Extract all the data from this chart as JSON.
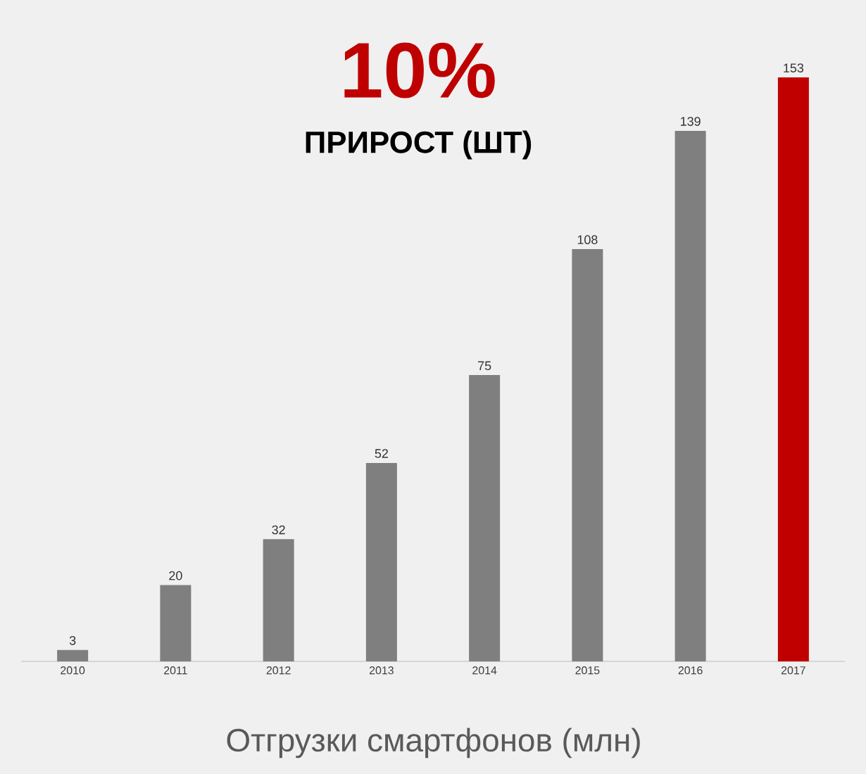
{
  "chart_data": {
    "type": "bar",
    "title": "10%",
    "subtitle": "ПРИРОСТ (ШТ)",
    "xlabel": "Отгрузки смартфонов (млн)",
    "categories": [
      "2010",
      "2011",
      "2012",
      "2013",
      "2014",
      "2015",
      "2016",
      "2017"
    ],
    "values": [
      3,
      20,
      32,
      52,
      75,
      108,
      139,
      153
    ],
    "colors": [
      "#7f7f7f",
      "#7f7f7f",
      "#7f7f7f",
      "#7f7f7f",
      "#7f7f7f",
      "#7f7f7f",
      "#7f7f7f",
      "#c00000"
    ],
    "data_labels": true
  }
}
